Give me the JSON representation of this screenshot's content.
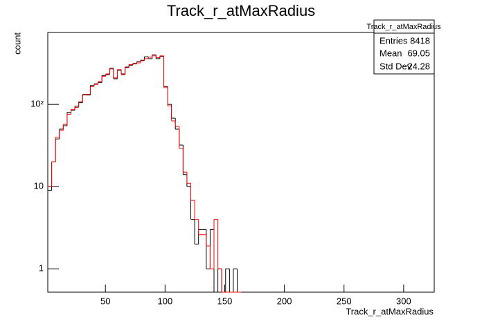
{
  "chart_data": {
    "type": "histogram",
    "title": "Track_r_atMaxRadius",
    "x_label": "Track_r_atMaxRadius",
    "y_label": "count",
    "log_y": true,
    "bins": [
      1.7,
      4.94,
      8.18,
      11.42,
      14.66,
      17.9,
      21.14,
      24.38,
      27.62,
      30.86,
      34.1,
      37.34,
      40.58,
      43.82,
      47.06,
      50.3,
      53.54,
      56.78,
      60.02,
      63.26,
      66.5,
      69.74,
      72.98,
      76.22,
      79.46,
      82.7,
      85.94,
      89.18,
      92.42,
      95.66,
      98.9,
      102.14,
      105.38,
      108.62,
      111.86,
      115.1,
      118.34,
      121.58,
      124.82,
      128.06,
      131.3,
      134.54,
      137.78,
      141.02,
      144.26,
      147.5,
      150.74,
      153.98,
      157.22,
      160.46,
      163.7
    ],
    "series": [
      {
        "color": "#000000",
        "values": [
          9,
          20,
          38,
          50,
          55,
          80,
          85,
          95,
          105,
          132,
          130,
          170,
          178,
          185,
          225,
          230,
          275,
          205,
          260,
          235,
          285,
          300,
          315,
          330,
          345,
          380,
          360,
          400,
          360,
          385,
          165,
          100,
          68,
          50,
          32,
          14,
          10,
          4,
          2,
          3,
          3,
          1,
          3,
          0,
          1,
          0,
          1,
          0,
          1,
          0
        ]
      },
      {
        "color": "#ff0000",
        "values": [
          10,
          20,
          40,
          48,
          57,
          76,
          87,
          92,
          108,
          130,
          133,
          165,
          175,
          190,
          220,
          235,
          270,
          210,
          265,
          230,
          280,
          305,
          310,
          320,
          340,
          360,
          375,
          390,
          370,
          390,
          160,
          96,
          63,
          54,
          29,
          15,
          11,
          6.8,
          4,
          2.6,
          2.6,
          1.9,
          1,
          4,
          1,
          0,
          0,
          0,
          0,
          0
        ]
      }
    ],
    "xlim": [
      1.7,
      325.6
    ],
    "xticks": [
      50,
      100,
      150,
      200,
      250,
      300
    ],
    "ylim": [
      0.52,
      750
    ],
    "yticks": [
      1,
      10,
      {
        "value": 100,
        "label": "10²"
      }
    ],
    "stats": {
      "title": "Track_r_atMaxRadius",
      "rows": [
        [
          "Entries",
          "8418"
        ],
        [
          "Mean",
          "69.05"
        ],
        [
          "Std Dev",
          "24.28"
        ]
      ]
    }
  }
}
